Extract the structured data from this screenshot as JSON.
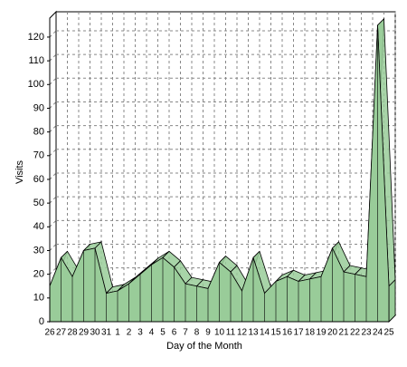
{
  "chart_data": {
    "type": "area3d",
    "x_label": "Day of the Month",
    "y_label": "Visits",
    "categories": [
      "26",
      "27",
      "28",
      "29",
      "30",
      "31",
      "1",
      "2",
      "3",
      "4",
      "5",
      "6",
      "7",
      "8",
      "9",
      "10",
      "11",
      "12",
      "13",
      "14",
      "15",
      "16",
      "17",
      "18",
      "19",
      "20",
      "21",
      "22",
      "23",
      "24",
      "25"
    ],
    "values": [
      15,
      27,
      19,
      30,
      31,
      12,
      13,
      16,
      20,
      24,
      27,
      23,
      16,
      15,
      14,
      25,
      21,
      13,
      27,
      12,
      17,
      19,
      17,
      18,
      19,
      31,
      21,
      20,
      19,
      125,
      15
    ],
    "color": "#99cc99",
    "ylim": [
      0,
      128
    ],
    "yticks": [
      0,
      10,
      20,
      30,
      40,
      50,
      60,
      70,
      80,
      90,
      100,
      110,
      120
    ],
    "grid": true
  }
}
